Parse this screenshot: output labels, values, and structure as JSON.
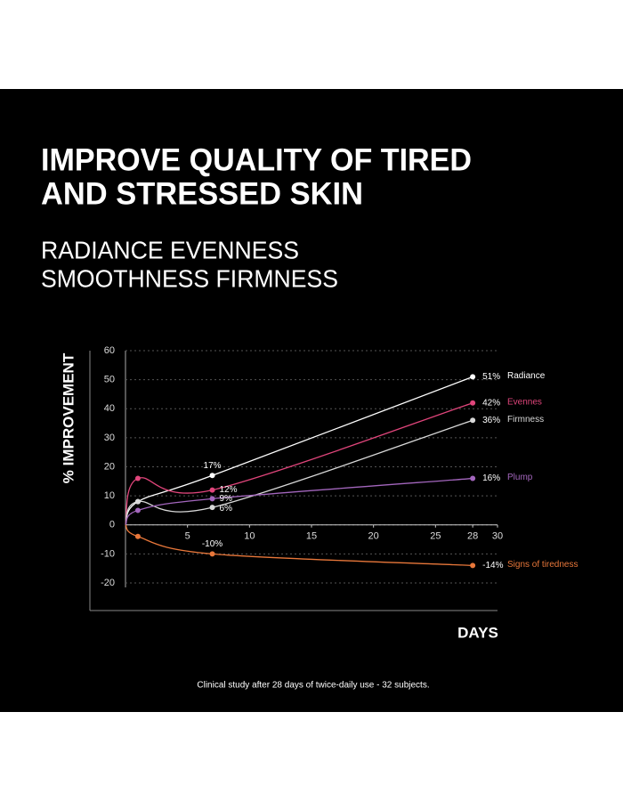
{
  "chart_data": {
    "type": "line",
    "title_lines": [
      "IMPROVE QUALITY OF TIRED",
      "AND STRESSED SKIN"
    ],
    "subtitle_lines": [
      "RADIANCE EVENNESS",
      "SMOOTHNESS FIRMNESS"
    ],
    "y_label": "% IMPROVEMENT",
    "x_label": "DAYS",
    "footnote": "Clinical study after 28 days of twice-daily use - 32 subjects.",
    "x": [
      0,
      1,
      7,
      28
    ],
    "xlim": [
      0,
      30
    ],
    "xticks": [
      5,
      10,
      15,
      20,
      25,
      28,
      30
    ],
    "ylim": [
      -20,
      60
    ],
    "yticks": [
      -20,
      -10,
      0,
      10,
      20,
      30,
      40,
      50,
      60
    ],
    "grid": true,
    "series": [
      {
        "name": "Radiance",
        "color": "#ffffff",
        "values": [
          0,
          8,
          17,
          51
        ],
        "value_labels": [
          null,
          null,
          "17%",
          "51%"
        ]
      },
      {
        "name": "Evennes",
        "color": "#e0457b",
        "values": [
          0,
          16,
          12,
          42
        ],
        "value_labels": [
          null,
          null,
          "12%",
          "42%"
        ]
      },
      {
        "name": "Firmness",
        "color": "#d8d8d8",
        "values": [
          0,
          8,
          6,
          36
        ],
        "value_labels": [
          null,
          null,
          "6%",
          "36%"
        ]
      },
      {
        "name": "Plump",
        "color": "#a366bd",
        "values": [
          0,
          5,
          9,
          16
        ],
        "value_labels": [
          null,
          null,
          "9%",
          "16%"
        ]
      },
      {
        "name": "Signs of tiredness",
        "color": "#e8773a",
        "values": [
          0,
          -4,
          -10,
          -14
        ],
        "value_labels": [
          null,
          null,
          "-10%",
          "-14%"
        ]
      }
    ]
  }
}
